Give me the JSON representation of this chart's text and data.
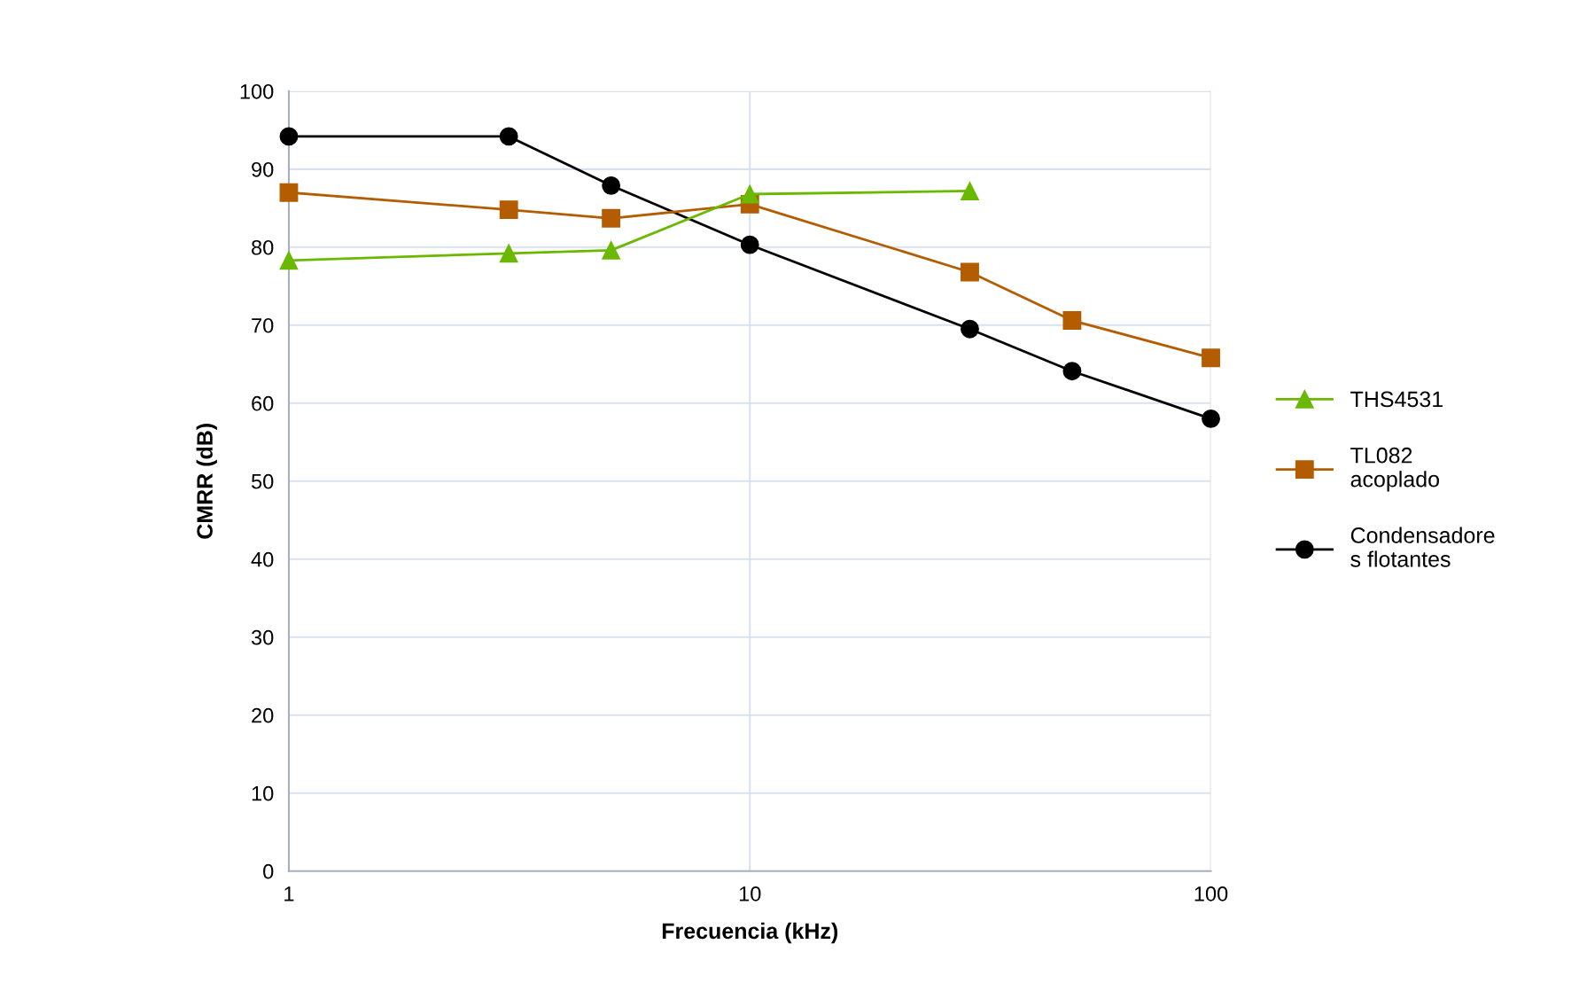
{
  "chart_data": {
    "type": "line",
    "xlabel": "Frecuencia (kHz)",
    "ylabel": "CMRR (dB)",
    "log": "x",
    "xlim": [
      1,
      100
    ],
    "xticks": [
      1,
      10,
      100
    ],
    "ylim": [
      0,
      100
    ],
    "yticks": [
      0,
      10,
      20,
      30,
      40,
      50,
      60,
      70,
      80,
      90,
      100
    ],
    "grid": true,
    "legend": "right",
    "series": [
      {
        "name": "THS4531",
        "color": "#6ab800",
        "marker": "triangle",
        "x": [
          1,
          3,
          5,
          10,
          30
        ],
        "values": [
          78.3,
          79.2,
          79.6,
          86.8,
          87.2
        ]
      },
      {
        "name": "TL082\nacoplado",
        "color": "#b35c00",
        "marker": "square",
        "x": [
          1,
          3,
          5,
          10,
          30,
          50,
          100
        ],
        "values": [
          87.0,
          84.8,
          83.7,
          85.5,
          76.8,
          70.6,
          65.8
        ]
      },
      {
        "name": "Condensadore\ns flotantes",
        "color": "#000000",
        "marker": "circle",
        "x": [
          1,
          3,
          5,
          10,
          30,
          50,
          100
        ],
        "values": [
          94.2,
          94.2,
          87.9,
          80.3,
          69.5,
          64.1,
          58.0
        ]
      }
    ]
  }
}
